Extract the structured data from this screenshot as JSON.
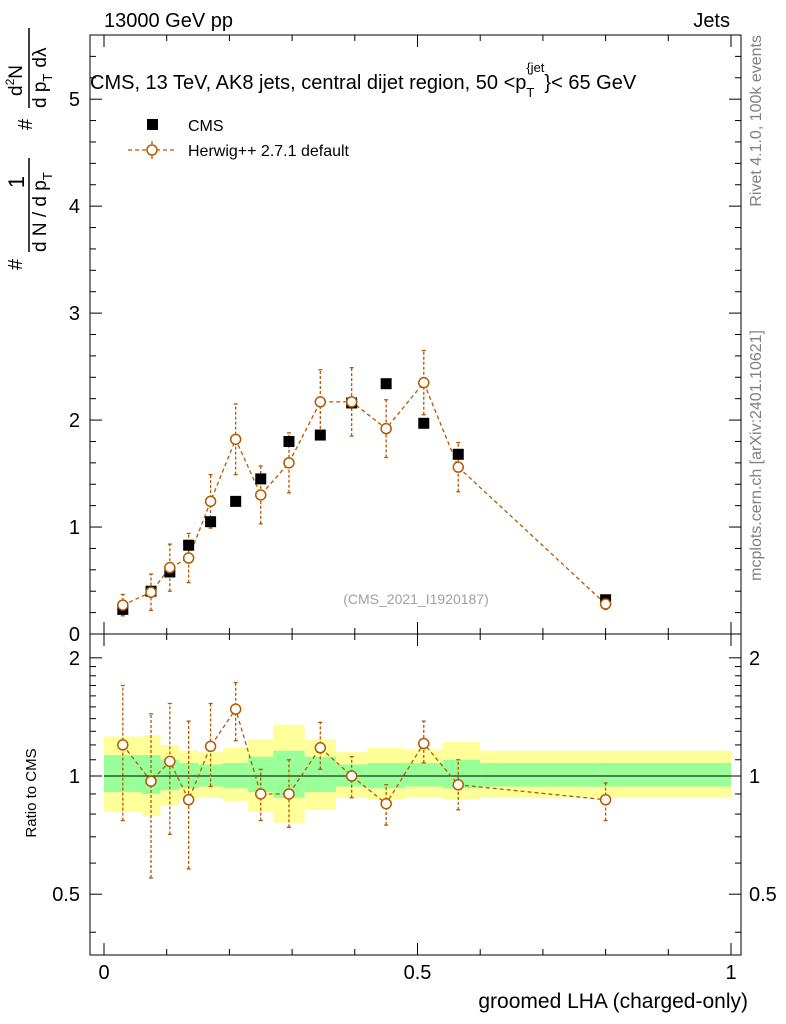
{
  "header": {
    "left": "13000 GeV pp",
    "right": "Jets"
  },
  "side_labels": {
    "rivet": "Rivet 4.1.0,  100k events",
    "mcplots": "mcplots.cern.ch [arXiv:2401.10621]"
  },
  "watermark": "(CMS_2021_I1920187)",
  "colors": {
    "data": "#000000",
    "mc": "#b35900",
    "band_outer": "#ffff99",
    "band_inner": "#99ff99",
    "mc_fill": "#ffffff"
  },
  "legend": {
    "data": "CMS",
    "mc": "Herwig++ 2.7.1 default"
  },
  "chart_data": [
    {
      "type": "scatter",
      "panel": "main",
      "title": "CMS, 13 TeV, AK8 jets, central dijet region, 50 <p_T^{jet}< 65 GeV",
      "title_parts": {
        "before": "CMS, 13 TeV, AK8 jets, central dijet region, 50 <",
        "base": "p",
        "sub": "T",
        "sup": "{jet",
        "after": "}< 65 GeV"
      },
      "ylabel_parts": {
        "hash": "#",
        "one": "1",
        "dN": "d N / d p",
        "T": "T",
        "d2N": "d",
        "two": "2",
        "N": "N",
        "dpT": "d p",
        "dl": "dλ"
      },
      "xlim": [
        0,
        1
      ],
      "ylim": [
        0,
        5.6
      ],
      "yticks": [
        0,
        1,
        2,
        3,
        4,
        5
      ],
      "ytick_labels": [
        "0",
        "1",
        "2",
        "3",
        "4",
        "5"
      ],
      "grid": false,
      "legend_position": "top-left",
      "series": [
        {
          "name": "CMS",
          "marker": "square",
          "x": [
            0.03,
            0.075,
            0.105,
            0.135,
            0.17,
            0.21,
            0.25,
            0.295,
            0.345,
            0.395,
            0.45,
            0.51,
            0.565,
            0.8
          ],
          "y": [
            0.23,
            0.4,
            0.58,
            0.83,
            1.05,
            1.24,
            1.45,
            1.8,
            1.86,
            2.16,
            2.34,
            1.97,
            1.68,
            0.32
          ]
        },
        {
          "name": "Herwig++ 2.7.1 default",
          "marker": "open-circle",
          "x": [
            0.03,
            0.075,
            0.105,
            0.135,
            0.17,
            0.21,
            0.25,
            0.295,
            0.345,
            0.395,
            0.45,
            0.51,
            0.565,
            0.8
          ],
          "y": [
            0.27,
            0.39,
            0.62,
            0.71,
            1.24,
            1.82,
            1.3,
            1.6,
            2.17,
            2.17,
            1.92,
            2.35,
            1.56,
            0.28
          ],
          "yerr": [
            0.1,
            0.17,
            0.22,
            0.23,
            0.25,
            0.33,
            0.27,
            0.28,
            0.3,
            0.32,
            0.27,
            0.3,
            0.23,
            0.05
          ]
        }
      ]
    },
    {
      "type": "scatter",
      "panel": "ratio",
      "ylabel": "Ratio to CMS",
      "xlabel": "groomed LHA (charged-only)",
      "xlim": [
        0,
        1
      ],
      "ylim": [
        0.35,
        2.3
      ],
      "yscale": "log",
      "reference": 1,
      "xticks": [
        0,
        0.5,
        1
      ],
      "xtick_labels": [
        "0",
        "0.5",
        "1"
      ],
      "yticks": [
        0.5,
        1,
        2
      ],
      "ytick_labels": [
        "0.5",
        "1",
        "2"
      ],
      "bands": [
        {
          "x0": 0.0,
          "x1": 0.06,
          "outer": [
            0.81,
            1.26
          ],
          "inner": [
            0.91,
            1.13
          ]
        },
        {
          "x0": 0.06,
          "x1": 0.09,
          "outer": [
            0.79,
            1.27
          ],
          "inner": [
            0.9,
            1.13
          ]
        },
        {
          "x0": 0.09,
          "x1": 0.12,
          "outer": [
            0.84,
            1.2
          ],
          "inner": [
            0.92,
            1.1
          ]
        },
        {
          "x0": 0.12,
          "x1": 0.15,
          "outer": [
            0.87,
            1.16
          ],
          "inner": [
            0.93,
            1.08
          ]
        },
        {
          "x0": 0.15,
          "x1": 0.19,
          "outer": [
            0.88,
            1.15
          ],
          "inner": [
            0.94,
            1.07
          ]
        },
        {
          "x0": 0.19,
          "x1": 0.23,
          "outer": [
            0.86,
            1.18
          ],
          "inner": [
            0.93,
            1.08
          ]
        },
        {
          "x0": 0.23,
          "x1": 0.27,
          "outer": [
            0.81,
            1.24
          ],
          "inner": [
            0.91,
            1.12
          ]
        },
        {
          "x0": 0.27,
          "x1": 0.32,
          "outer": [
            0.76,
            1.35
          ],
          "inner": [
            0.88,
            1.16
          ]
        },
        {
          "x0": 0.32,
          "x1": 0.37,
          "outer": [
            0.82,
            1.24
          ],
          "inner": [
            0.91,
            1.12
          ]
        },
        {
          "x0": 0.37,
          "x1": 0.42,
          "outer": [
            0.88,
            1.15
          ],
          "inner": [
            0.94,
            1.07
          ]
        },
        {
          "x0": 0.42,
          "x1": 0.48,
          "outer": [
            0.87,
            1.18
          ],
          "inner": [
            0.93,
            1.08
          ]
        },
        {
          "x0": 0.48,
          "x1": 0.54,
          "outer": [
            0.88,
            1.17
          ],
          "inner": [
            0.94,
            1.08
          ]
        },
        {
          "x0": 0.54,
          "x1": 0.6,
          "outer": [
            0.87,
            1.22
          ],
          "inner": [
            0.93,
            1.1
          ]
        },
        {
          "x0": 0.6,
          "x1": 1.0,
          "outer": [
            0.88,
            1.16
          ],
          "inner": [
            0.94,
            1.08
          ]
        }
      ],
      "series": [
        {
          "name": "Herwig++ 2.7.1 default",
          "marker": "open-circle",
          "x": [
            0.03,
            0.075,
            0.105,
            0.135,
            0.17,
            0.21,
            0.25,
            0.295,
            0.345,
            0.395,
            0.45,
            0.51,
            0.565,
            0.8
          ],
          "y": [
            1.2,
            0.97,
            1.09,
            0.87,
            1.19,
            1.48,
            0.9,
            0.9,
            1.18,
            1.0,
            0.85,
            1.21,
            0.95,
            0.87
          ],
          "ylo": [
            0.77,
            0.55,
            0.71,
            0.58,
            0.94,
            1.23,
            0.77,
            0.74,
            1.04,
            0.88,
            0.75,
            1.08,
            0.82,
            0.77
          ],
          "yhi": [
            1.7,
            1.44,
            1.53,
            1.38,
            1.53,
            1.73,
            1.04,
            1.1,
            1.37,
            1.12,
            0.95,
            1.38,
            1.1,
            0.96
          ]
        }
      ]
    }
  ]
}
